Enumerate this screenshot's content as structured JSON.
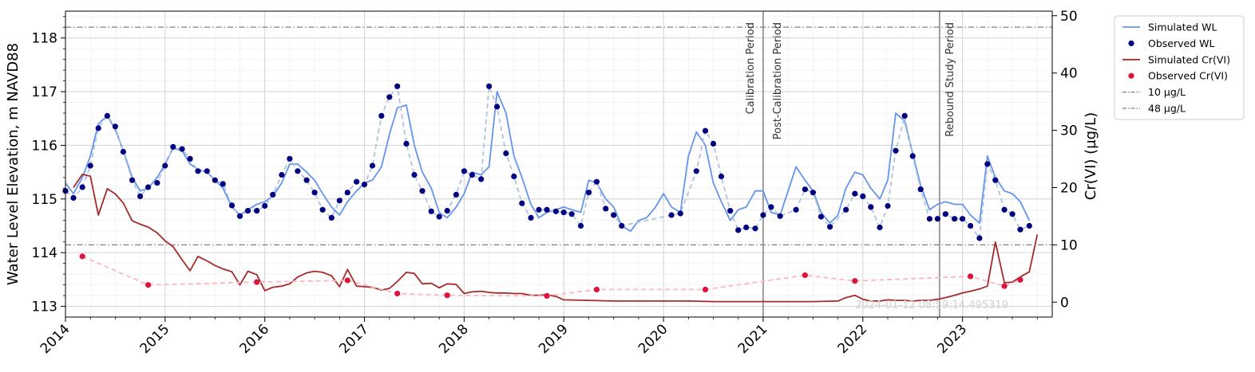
{
  "chart_data": {
    "type": "line",
    "ylabel_left": "Water Level Elevation, m NAVD88",
    "ylabel_right": "Cr(VI) (µg/L)",
    "xlim": [
      2014.0,
      2023.9
    ],
    "ylim_left": [
      112.8,
      118.5
    ],
    "ylim_right": [
      -2.6,
      50.8
    ],
    "x_ticks": [
      2014,
      2015,
      2016,
      2017,
      2018,
      2019,
      2020,
      2021,
      2022,
      2023
    ],
    "x_tick_labels": [
      "2014",
      "2015",
      "2016",
      "2017",
      "2018",
      "2019",
      "2020",
      "2021",
      "2022",
      "2023"
    ],
    "y_ticks_left": [
      113,
      114,
      115,
      116,
      117,
      118
    ],
    "y_tick_labels_left": [
      "113",
      "114",
      "115",
      "116",
      "117",
      "118"
    ],
    "y_ticks_right": [
      0,
      10,
      20,
      30,
      40,
      50
    ],
    "y_tick_labels_right": [
      "0",
      "10",
      "20",
      "30",
      "40",
      "50"
    ],
    "grid": true,
    "legend_position": "outside-top-right",
    "periods": [
      {
        "x": 2021.0,
        "labels": [
          "Calibration Period",
          "Post-Calibration Period"
        ]
      },
      {
        "x": 2022.77,
        "labels": [
          "Rebound Study Period"
        ]
      }
    ],
    "watermark": "2024-01-12 08:59:14.495319",
    "series": [
      {
        "name": "Simulated WL",
        "kind": "line",
        "axis": "left",
        "color": "#6495ED",
        "x": [
          2014.0,
          2014.08,
          2014.17,
          2014.25,
          2014.33,
          2014.42,
          2014.5,
          2014.58,
          2014.67,
          2014.75,
          2014.83,
          2014.92,
          2015.0,
          2015.08,
          2015.17,
          2015.25,
          2015.33,
          2015.42,
          2015.5,
          2015.58,
          2015.67,
          2015.75,
          2015.83,
          2015.92,
          2016.0,
          2016.08,
          2016.17,
          2016.25,
          2016.33,
          2016.42,
          2016.5,
          2016.58,
          2016.67,
          2016.75,
          2016.83,
          2016.92,
          2017.0,
          2017.08,
          2017.17,
          2017.25,
          2017.33,
          2017.42,
          2017.5,
          2017.58,
          2017.67,
          2017.75,
          2017.83,
          2017.92,
          2018.0,
          2018.08,
          2018.17,
          2018.25,
          2018.33,
          2018.42,
          2018.5,
          2018.58,
          2018.67,
          2018.75,
          2018.83,
          2018.92,
          2019.0,
          2019.08,
          2019.17,
          2019.25,
          2019.33,
          2019.42,
          2019.5,
          2019.58,
          2019.67,
          2019.75,
          2019.83,
          2019.92,
          2020.0,
          2020.08,
          2020.17,
          2020.25,
          2020.33,
          2020.42,
          2020.5,
          2020.58,
          2020.67,
          2020.75,
          2020.83,
          2020.92,
          2021.0,
          2021.08,
          2021.17,
          2021.25,
          2021.33,
          2021.42,
          2021.5,
          2021.58,
          2021.67,
          2021.75,
          2021.83,
          2021.92,
          2022.0,
          2022.08,
          2022.17,
          2022.25,
          2022.33,
          2022.42,
          2022.5,
          2022.58,
          2022.67,
          2022.75,
          2022.83,
          2022.92,
          2023.0,
          2023.08,
          2023.17,
          2023.25,
          2023.33,
          2023.42,
          2023.5,
          2023.58,
          2023.67
        ],
        "y": [
          115.3,
          115.1,
          115.4,
          115.8,
          116.4,
          116.55,
          116.3,
          115.9,
          115.4,
          115.15,
          115.2,
          115.4,
          115.65,
          115.95,
          115.9,
          115.65,
          115.55,
          115.5,
          115.35,
          115.2,
          114.85,
          114.7,
          114.8,
          114.9,
          114.95,
          115.05,
          115.3,
          115.65,
          115.65,
          115.5,
          115.35,
          115.1,
          114.85,
          114.7,
          114.95,
          115.15,
          115.3,
          115.35,
          115.6,
          116.2,
          116.7,
          116.75,
          116.0,
          115.5,
          115.2,
          114.75,
          114.65,
          114.85,
          115.1,
          115.5,
          115.45,
          115.6,
          117.0,
          116.6,
          115.8,
          115.4,
          114.9,
          114.65,
          114.75,
          114.8,
          114.85,
          114.8,
          114.75,
          115.35,
          115.3,
          115.0,
          114.85,
          114.5,
          114.4,
          114.6,
          114.65,
          114.85,
          115.1,
          114.85,
          114.75,
          115.8,
          116.25,
          116.0,
          115.3,
          114.95,
          114.6,
          114.8,
          114.85,
          115.15,
          115.15,
          114.75,
          114.7,
          115.15,
          115.6,
          115.35,
          115.15,
          114.75,
          114.55,
          114.7,
          115.2,
          115.5,
          115.45,
          115.2,
          115.0,
          115.35,
          116.6,
          116.45,
          115.85,
          115.25,
          114.8,
          114.9,
          114.95,
          114.9,
          114.9,
          114.7,
          114.55,
          115.8,
          115.4,
          115.15,
          115.1,
          114.95,
          114.6
        ]
      },
      {
        "name": "Observed WL",
        "kind": "scatter",
        "axis": "left",
        "color": "#000080",
        "connector_color": "#B0C4DE",
        "x": [
          2014.0,
          2014.08,
          2014.17,
          2014.25,
          2014.33,
          2014.42,
          2014.5,
          2014.58,
          2014.67,
          2014.75,
          2014.83,
          2014.92,
          2015.0,
          2015.08,
          2015.17,
          2015.25,
          2015.33,
          2015.42,
          2015.5,
          2015.58,
          2015.67,
          2015.75,
          2015.83,
          2015.92,
          2016.0,
          2016.08,
          2016.17,
          2016.25,
          2016.33,
          2016.42,
          2016.5,
          2016.58,
          2016.67,
          2016.75,
          2016.83,
          2016.92,
          2017.0,
          2017.08,
          2017.17,
          2017.25,
          2017.33,
          2017.42,
          2017.5,
          2017.58,
          2017.67,
          2017.75,
          2017.83,
          2017.92,
          2018.0,
          2018.08,
          2018.17,
          2018.25,
          2018.33,
          2018.42,
          2018.5,
          2018.58,
          2018.67,
          2018.75,
          2018.83,
          2018.92,
          2019.0,
          2019.08,
          2019.17,
          2019.25,
          2019.33,
          2019.42,
          2019.5,
          2019.58,
          2020.08,
          2020.17,
          2020.33,
          2020.42,
          2020.5,
          2020.58,
          2020.67,
          2020.75,
          2020.83,
          2020.92,
          2021.0,
          2021.08,
          2021.17,
          2021.33,
          2021.42,
          2021.5,
          2021.58,
          2021.67,
          2021.83,
          2021.92,
          2022.0,
          2022.08,
          2022.17,
          2022.25,
          2022.33,
          2022.42,
          2022.5,
          2022.58,
          2022.67,
          2022.75,
          2022.83,
          2022.92,
          2023.0,
          2023.08,
          2023.17,
          2023.25,
          2023.33,
          2023.42,
          2023.5,
          2023.58,
          2023.67
        ],
        "y": [
          115.15,
          115.02,
          115.22,
          115.62,
          116.32,
          116.55,
          116.35,
          115.88,
          115.35,
          115.05,
          115.22,
          115.3,
          115.62,
          115.97,
          115.93,
          115.75,
          115.52,
          115.52,
          115.35,
          115.28,
          114.88,
          114.68,
          114.78,
          114.78,
          114.87,
          115.08,
          115.45,
          115.75,
          115.52,
          115.35,
          115.12,
          114.8,
          114.65,
          114.97,
          115.12,
          115.32,
          115.27,
          115.62,
          116.55,
          116.9,
          117.1,
          116.03,
          115.45,
          115.15,
          114.77,
          114.67,
          114.78,
          115.08,
          115.52,
          115.45,
          115.37,
          117.1,
          116.72,
          115.85,
          115.42,
          114.92,
          114.65,
          114.8,
          114.8,
          114.77,
          114.75,
          114.72,
          114.5,
          115.12,
          115.32,
          114.82,
          114.7,
          114.5,
          114.7,
          114.73,
          115.52,
          116.27,
          116.03,
          115.42,
          114.78,
          114.42,
          114.47,
          114.45,
          114.7,
          114.85,
          114.68,
          114.8,
          115.18,
          115.12,
          114.67,
          114.48,
          114.8,
          115.1,
          115.05,
          114.85,
          114.47,
          114.87,
          115.9,
          116.55,
          115.8,
          115.18,
          114.63,
          114.63,
          114.72,
          114.63,
          114.63,
          114.5,
          114.27,
          115.65,
          115.35,
          114.8,
          114.72,
          114.43,
          114.5
        ]
      },
      {
        "name": "Simulated Cr(VI)",
        "kind": "line",
        "axis": "right",
        "color": "#A52A2A",
        "x": [
          2014.08,
          2014.17,
          2014.25,
          2014.33,
          2014.42,
          2014.5,
          2014.58,
          2014.67,
          2014.75,
          2014.83,
          2014.92,
          2015.0,
          2015.08,
          2015.17,
          2015.25,
          2015.33,
          2015.42,
          2015.5,
          2015.58,
          2015.67,
          2015.75,
          2015.83,
          2015.92,
          2016.0,
          2016.08,
          2016.17,
          2016.25,
          2016.33,
          2016.42,
          2016.5,
          2016.58,
          2016.67,
          2016.75,
          2016.83,
          2016.92,
          2017.0,
          2017.08,
          2017.17,
          2017.25,
          2017.33,
          2017.42,
          2017.5,
          2017.58,
          2017.67,
          2017.75,
          2017.83,
          2017.92,
          2018.0,
          2018.08,
          2018.17,
          2018.25,
          2018.33,
          2018.42,
          2018.5,
          2018.58,
          2018.67,
          2018.75,
          2018.83,
          2018.92,
          2019.0,
          2019.25,
          2019.5,
          2019.75,
          2020.0,
          2020.25,
          2020.5,
          2020.75,
          2021.0,
          2021.25,
          2021.5,
          2021.75,
          2021.83,
          2021.92,
          2022.0,
          2022.08,
          2022.17,
          2022.25,
          2022.33,
          2022.42,
          2022.5,
          2022.58,
          2022.67,
          2022.75,
          2022.83,
          2022.92,
          2023.0,
          2023.08,
          2023.17,
          2023.25,
          2023.33,
          2023.42,
          2023.5,
          2023.58,
          2023.67,
          2023.75
        ],
        "y": [
          20.0,
          22.3,
          22.0,
          15.2,
          19.8,
          18.9,
          17.3,
          14.2,
          13.6,
          13.1,
          12.1,
          10.7,
          9.7,
          7.4,
          5.5,
          8.0,
          7.2,
          6.4,
          5.8,
          5.3,
          3.0,
          5.4,
          4.8,
          2.0,
          2.6,
          2.8,
          3.2,
          4.4,
          5.1,
          5.4,
          5.2,
          4.6,
          2.7,
          5.7,
          2.8,
          2.7,
          2.6,
          2.1,
          2.4,
          3.6,
          5.2,
          5.0,
          3.2,
          3.3,
          2.5,
          3.2,
          3.1,
          1.5,
          1.8,
          1.9,
          1.7,
          1.6,
          1.6,
          1.5,
          1.5,
          1.2,
          1.2,
          1.3,
          1.0,
          0.4,
          0.3,
          0.2,
          0.2,
          0.2,
          0.2,
          0.1,
          0.1,
          0.1,
          0.1,
          0.1,
          0.2,
          0.8,
          1.2,
          0.5,
          0.2,
          0.2,
          0.4,
          0.3,
          0.3,
          0.2,
          0.3,
          0.3,
          0.5,
          0.8,
          1.2,
          1.6,
          1.9,
          2.3,
          2.8,
          10.5,
          3.4,
          3.5,
          4.4,
          5.3,
          11.8
        ]
      },
      {
        "name": "Observed Cr(VI)",
        "kind": "scatter",
        "axis": "right",
        "color": "#DC143C",
        "connector_color": "#FFB6C1",
        "x": [
          2014.17,
          2014.83,
          2015.92,
          2016.83,
          2017.33,
          2017.83,
          2018.83,
          2019.33,
          2020.42,
          2021.42,
          2021.92,
          2023.08,
          2023.42,
          2023.58
        ],
        "y": [
          8.0,
          3.0,
          3.5,
          3.8,
          1.5,
          1.2,
          1.1,
          2.2,
          2.2,
          4.7,
          3.7,
          4.5,
          2.8,
          3.9
        ]
      },
      {
        "name": "10 µg/L",
        "kind": "hline",
        "axis": "right",
        "value": 10,
        "color": "#808080",
        "dash": "dashdot"
      },
      {
        "name": "48 µg/L",
        "kind": "hline",
        "axis": "right",
        "value": 48,
        "color": "#808080",
        "dash": "dashdot"
      }
    ]
  }
}
